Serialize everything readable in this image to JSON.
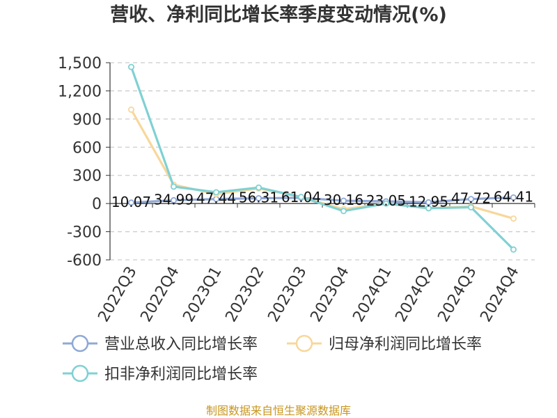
{
  "chart_data": {
    "type": "line",
    "title": "营收、净利同比增长率季度变动情况(%)",
    "categories": [
      "2022Q3",
      "2022Q4",
      "2023Q1",
      "2023Q2",
      "2023Q3",
      "2023Q4",
      "2024Q1",
      "2024Q2",
      "2024Q3",
      "2024Q4"
    ],
    "ylim": [
      -600,
      1500
    ],
    "yticks": [
      1500,
      1200,
      900,
      600,
      300,
      0,
      -300,
      -600
    ],
    "ytick_labels": [
      "1,500",
      "1,200",
      "900",
      "600",
      "300",
      "0",
      "-300",
      "-600"
    ],
    "grid": true,
    "legend_position": "bottom",
    "series": [
      {
        "name": "营业总收入同比增长率",
        "color": "#8fa8d6",
        "values": [
          10.07,
          34.99,
          47.44,
          56.31,
          61.04,
          30.16,
          23.05,
          12.95,
          47.72,
          64.41
        ],
        "labels": [
          "10.07",
          "34.99",
          "47.44",
          "56.31",
          "61.04",
          "30.16",
          "23.05",
          "12.95",
          "47.72",
          "64.41"
        ]
      },
      {
        "name": "归母净利润同比增长率",
        "color": "#f8d79a",
        "values": [
          1000,
          200,
          100,
          160,
          70,
          -60,
          0,
          -50,
          -30,
          -160
        ]
      },
      {
        "name": "扣非净利润同比增长率",
        "color": "#7fd1d3",
        "values": [
          1455,
          180,
          120,
          170,
          70,
          -80,
          0,
          -50,
          -40,
          -490
        ]
      }
    ]
  },
  "source_note": "制图数据来自恒生聚源数据库"
}
